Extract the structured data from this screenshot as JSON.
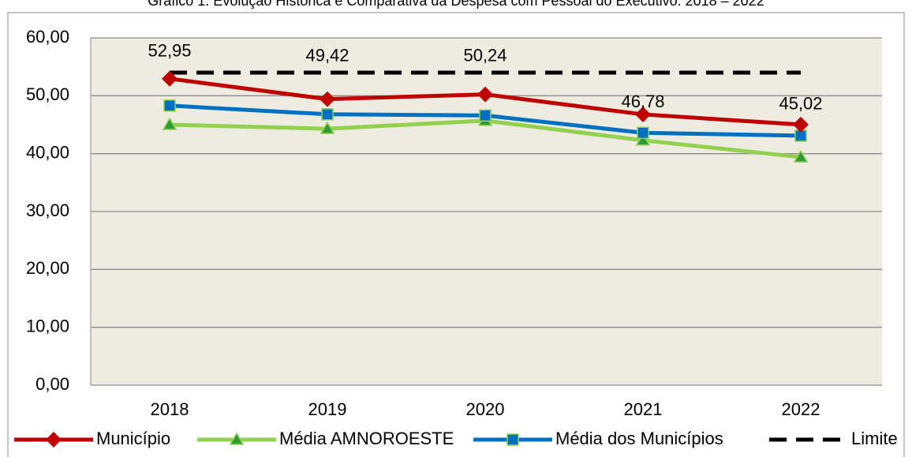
{
  "chart_data": {
    "type": "line",
    "title": "Gráfico 1: Evolução Histórica e Comparativa da Despesa com Pessoal do Executivo: 2018 – 2022",
    "categories": [
      "2018",
      "2019",
      "2020",
      "2021",
      "2022"
    ],
    "series": [
      {
        "name": "Município",
        "color": "#c00000",
        "marker": "diamond",
        "values": [
          52.95,
          49.42,
          50.24,
          46.78,
          45.02
        ],
        "value_labels": [
          "52,95",
          "49,42",
          "50,24",
          "46,78",
          "45,02"
        ]
      },
      {
        "name": "Média AMNOROESTE",
        "color": "#92d050",
        "marker": "triangle",
        "marker_color": "#2e9a3a",
        "values": [
          45.0,
          44.3,
          45.7,
          42.3,
          39.4
        ]
      },
      {
        "name": "Média dos Municípios",
        "color": "#0070c0",
        "marker": "square",
        "marker_color": "#0070c0",
        "values": [
          48.3,
          46.8,
          46.6,
          43.6,
          43.1
        ]
      },
      {
        "name": "Limite",
        "color": "#000000",
        "dash": true,
        "values": [
          54,
          54,
          54,
          54,
          54
        ]
      }
    ],
    "ylim": [
      0,
      60
    ],
    "yticks": [
      {
        "value": 0,
        "label": "0,00"
      },
      {
        "value": 10,
        "label": "10,00"
      },
      {
        "value": 20,
        "label": "20,00"
      },
      {
        "value": 30,
        "label": "30,00"
      },
      {
        "value": 40,
        "label": "40,00"
      },
      {
        "value": 50,
        "label": "50,00"
      },
      {
        "value": 60,
        "label": "60,00"
      }
    ],
    "grid": true,
    "legend": "bottom"
  }
}
